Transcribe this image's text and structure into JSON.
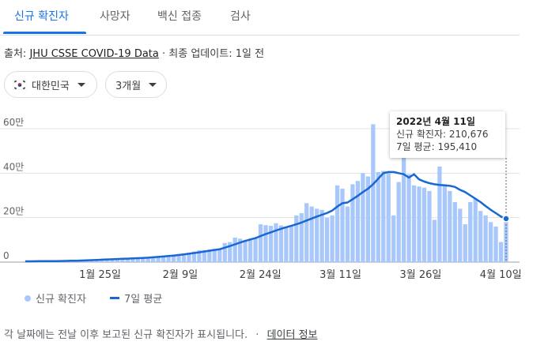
{
  "tabs": [
    {
      "label": "신규 확진자",
      "active": true
    },
    {
      "label": "사망자",
      "active": false
    },
    {
      "label": "백신 접종",
      "active": false
    },
    {
      "label": "검사",
      "active": false
    }
  ],
  "source": {
    "prefix": "출처:",
    "link": "JHU CSSE COVID-19 Data",
    "separator": "·",
    "updated": "최종 업데이트: 1일 전"
  },
  "filters": {
    "region": {
      "label": "대한민국",
      "icon": "korea-flag-icon"
    },
    "period": {
      "label": "3개월"
    }
  },
  "tooltip": {
    "date": "2022년 4월 11일",
    "cases_label": "신규 확진자:",
    "cases_value": "210,676",
    "avg_label": "7일 평균:",
    "avg_value": "195,410"
  },
  "legend": {
    "bars": "신규 확진자",
    "line": "7일 평균"
  },
  "footer": {
    "text": "각 날짜에는 전날 이후 보고된 신규 확진자가 표시됩니다.",
    "separator": "·",
    "link": "데이터 정보"
  },
  "colors": {
    "bar": "#a8c7fa",
    "line": "#1967d2",
    "accent": "#1a73e8",
    "grid": "#e0e0e0"
  },
  "chart_data": {
    "type": "bar",
    "x_start": "2022-01-11",
    "x_end": "2022-04-11",
    "x_tick_labels": [
      "1월 25일",
      "2월 9일",
      "2월 24일",
      "3월 11일",
      "3월 26일",
      "4월 10일"
    ],
    "x_tick_dates": [
      "2022-01-25",
      "2022-02-09",
      "2022-02-24",
      "2022-03-11",
      "2022-03-26",
      "2022-04-10"
    ],
    "y_tick_labels": [
      "0",
      "20만",
      "40만",
      "60만"
    ],
    "y_tick_values": [
      0,
      200000,
      400000,
      600000
    ],
    "ylim": [
      0,
      600000
    ],
    "grid": true,
    "series": [
      {
        "name": "신규 확진자",
        "style": "bar",
        "values": [
          4000,
          4200,
          4500,
          4100,
          4300,
          4400,
          4600,
          5800,
          6500,
          7000,
          7600,
          8500,
          9100,
          10500,
          12000,
          13000,
          14500,
          15000,
          16000,
          17000,
          17500,
          18000,
          19000,
          21000,
          23000,
          25000,
          27000,
          29000,
          31000,
          33000,
          36000,
          38000,
          42000,
          47000,
          53000,
          54000,
          57000,
          60000,
          62000,
          86000,
          90000,
          110000,
          105000,
          100000,
          105000,
          110000,
          170000,
          166000,
          163000,
          175000,
          165000,
          160000,
          165000,
          210000,
          220000,
          265000,
          250000,
          240000,
          235000,
          200000,
          210000,
          345000,
          330000,
          250000,
          350000,
          365000,
          400000,
          385000,
          620000,
          405000,
          410000,
          400000,
          210000,
          360000,
          590000,
          395000,
          345000,
          340000,
          335000,
          320000,
          190000,
          430000,
          350000,
          320000,
          270000,
          240000,
          170000,
          270000,
          285000,
          230000,
          210000,
          180000,
          160000,
          90000,
          210676
        ],
        "color": "#a8c7fa"
      },
      {
        "name": "7일 평균",
        "style": "line",
        "values": [
          3500,
          3700,
          3900,
          4100,
          4300,
          4500,
          4700,
          5000,
          5400,
          5900,
          6500,
          7200,
          8000,
          8900,
          9900,
          10900,
          11900,
          12900,
          13900,
          14800,
          15700,
          16600,
          17600,
          18700,
          20000,
          21600,
          23300,
          25200,
          27300,
          29500,
          32000,
          34700,
          37600,
          40700,
          44000,
          47500,
          51000,
          54500,
          58000,
          65000,
          72000,
          80000,
          88000,
          95000,
          102000,
          108000,
          117000,
          126000,
          134000,
          142000,
          150000,
          157000,
          163000,
          170000,
          178000,
          187000,
          196000,
          205000,
          213000,
          221000,
          232000,
          250000,
          265000,
          268000,
          283000,
          298000,
          315000,
          330000,
          350000,
          375000,
          400000,
          405000,
          405000,
          400000,
          395000,
          380000,
          395000,
          372000,
          362000,
          355000,
          350000,
          347000,
          345000,
          343000,
          338000,
          325000,
          315000,
          300000,
          285000,
          270000,
          252000,
          235000,
          220000,
          205000,
          195410
        ],
        "color": "#1967d2"
      }
    ],
    "highlight_index": 94
  }
}
